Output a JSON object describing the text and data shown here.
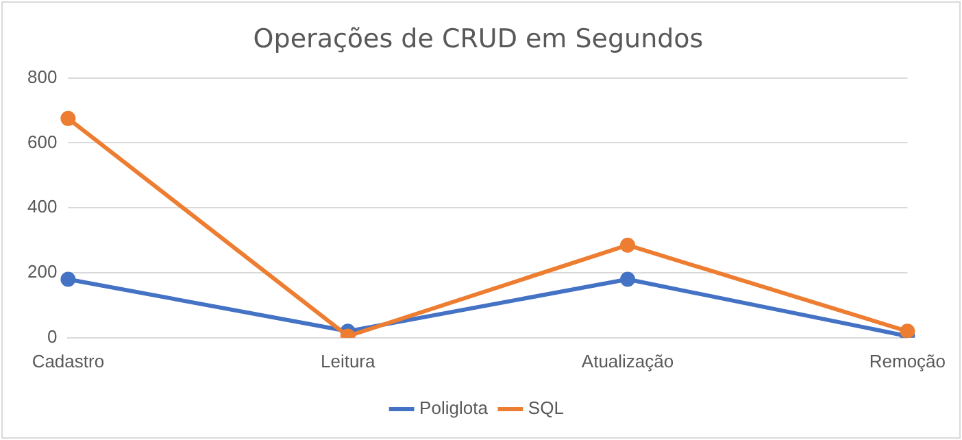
{
  "chart_data": {
    "type": "line",
    "title": "Operações de CRUD em Segundos",
    "categories": [
      "Cadastro",
      "Leitura",
      "Atualização",
      "Remoção"
    ],
    "series": [
      {
        "name": "Poliglota",
        "color": "#4472c4",
        "values": [
          180,
          20,
          180,
          5
        ]
      },
      {
        "name": "SQL",
        "color": "#ed7d31",
        "values": [
          675,
          5,
          285,
          20
        ]
      }
    ],
    "ylim": [
      0,
      800
    ],
    "yticks": [
      0,
      200,
      400,
      600,
      800
    ],
    "grid": "y",
    "legend": "bottom",
    "marker": "circle"
  }
}
